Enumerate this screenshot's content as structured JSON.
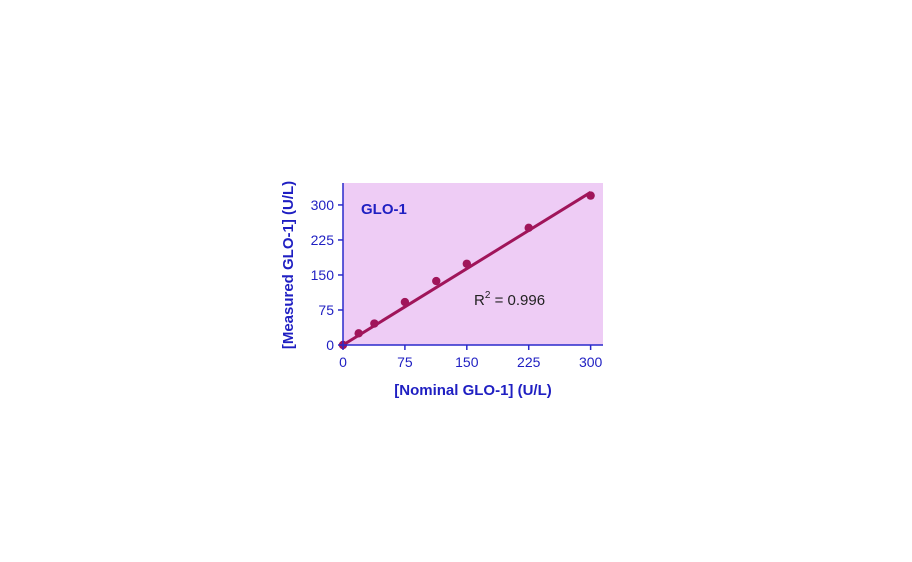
{
  "chart_data": {
    "type": "scatter",
    "title": "GLO-1",
    "xlabel": "[Nominal GLO-1] (U/L)",
    "ylabel": "[Measured GLO-1] (U/L)",
    "xlim": [
      0,
      315
    ],
    "ylim": [
      0,
      347
    ],
    "x_ticks": [
      0,
      75,
      150,
      225,
      300
    ],
    "y_ticks": [
      0,
      75,
      150,
      225,
      300
    ],
    "x_tick_labels": [
      "0",
      "75",
      "150",
      "225",
      "300"
    ],
    "y_tick_labels": [
      "0",
      "75",
      "150",
      "225",
      "300"
    ],
    "points": [
      {
        "x": 0,
        "y": 0
      },
      {
        "x": 19,
        "y": 25
      },
      {
        "x": 38,
        "y": 46
      },
      {
        "x": 75,
        "y": 92
      },
      {
        "x": 113,
        "y": 137
      },
      {
        "x": 150,
        "y": 174
      },
      {
        "x": 225,
        "y": 251
      },
      {
        "x": 300,
        "y": 320
      }
    ],
    "fit": {
      "x": [
        0,
        300
      ],
      "y": [
        0,
        327
      ]
    },
    "annotation": {
      "base": "R",
      "sup": "2",
      "rest": " = 0.996"
    },
    "grid": false,
    "legend": "none",
    "colors": {
      "plot_bg": "#EECCF5",
      "marker": "#A0155A",
      "axis": "#2A2ACB",
      "text": "#1F1FC2",
      "annotation_text": "#222222"
    }
  }
}
